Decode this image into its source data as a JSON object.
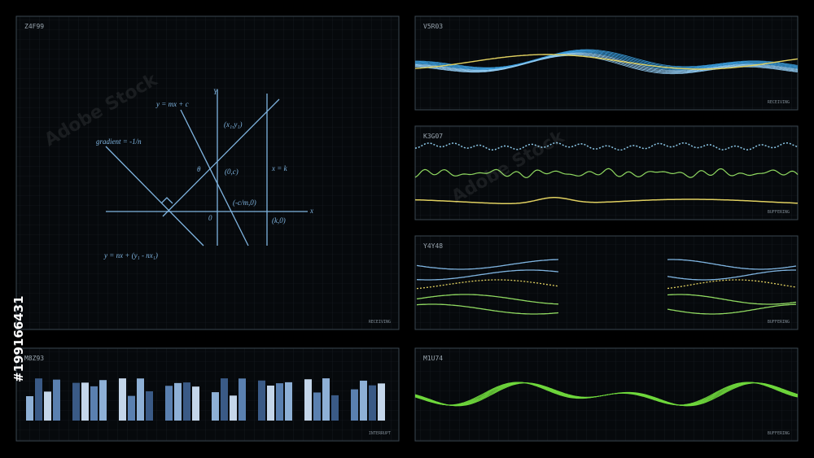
{
  "watermark": "Adobe Stock",
  "stock_id": "#199166431",
  "panels": [
    {
      "id": "Z4F99",
      "status": "RECEIVING"
    },
    {
      "id": "V5R03",
      "status": "RECEIVING"
    },
    {
      "id": "K3G07",
      "status": "BUFFERING"
    },
    {
      "id": "Y4Y48",
      "status": "BUFFERING"
    },
    {
      "id": "M8Z93",
      "status": "INTERRUPT"
    },
    {
      "id": "M1U74",
      "status": "BUFFERING"
    }
  ],
  "diagram": {
    "y_axis": "Y",
    "x_axis": "x",
    "origin": "0",
    "angle": "θ",
    "line_1": "y = mx + c",
    "line_2": "gradient = -1/n",
    "line_3": "y = nx + (y₁ - nx₁)",
    "vertical": "x = k",
    "point_1": "(x₁,y₁)",
    "point_2": "(0,c)",
    "point_3": "(-c/m,0)",
    "point_4": "(k,0)"
  }
}
